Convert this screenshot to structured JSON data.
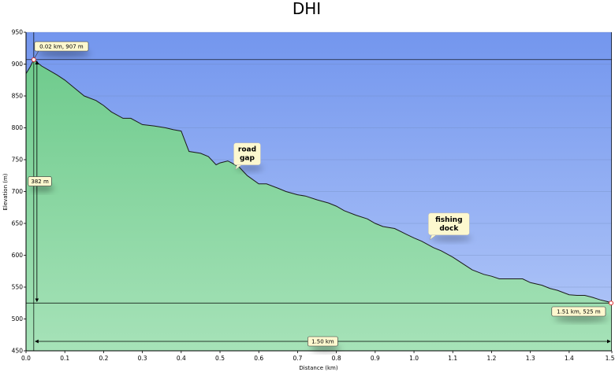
{
  "chart_data": {
    "type": "area",
    "title": "DHI",
    "xlabel": "Distance  (km)",
    "ylabel": "Elevation (m)",
    "xlim": [
      0,
      1.51
    ],
    "ylim": [
      450,
      950
    ],
    "xticks": [
      0.0,
      0.1,
      0.2,
      0.3,
      0.4,
      0.5,
      0.6,
      0.7,
      0.8,
      0.9,
      1.0,
      1.1,
      1.2,
      1.3,
      1.4,
      1.51
    ],
    "xtick_labels": [
      "0.0",
      "0.1",
      "0.2",
      "0.3",
      "0.4",
      "0.5",
      "0.6",
      "0.7",
      "0.8",
      "0.9",
      "1.0",
      "1.1",
      "1.2",
      "1.3",
      "1.4",
      "1.51"
    ],
    "yticks": [
      450,
      500,
      550,
      600,
      650,
      700,
      750,
      800,
      850,
      900,
      950
    ],
    "ytick_labels": [
      "450",
      "500",
      "550",
      "600",
      "650",
      "700",
      "750",
      "800",
      "850",
      "900",
      "950"
    ],
    "grid": true,
    "series": [
      {
        "x": [
          0.0,
          0.01,
          0.02,
          0.04,
          0.06,
          0.08,
          0.1,
          0.12,
          0.15,
          0.18,
          0.2,
          0.22,
          0.25,
          0.27,
          0.3,
          0.33,
          0.36,
          0.38,
          0.4,
          0.42,
          0.45,
          0.47,
          0.49,
          0.5,
          0.52,
          0.53,
          0.55,
          0.57,
          0.6,
          0.62,
          0.65,
          0.67,
          0.7,
          0.72,
          0.75,
          0.78,
          0.8,
          0.82,
          0.85,
          0.88,
          0.9,
          0.92,
          0.95,
          0.98,
          1.0,
          1.02,
          1.05,
          1.07,
          1.1,
          1.13,
          1.15,
          1.18,
          1.2,
          1.22,
          1.25,
          1.28,
          1.3,
          1.33,
          1.35,
          1.37,
          1.4,
          1.42,
          1.44,
          1.46,
          1.48,
          1.5,
          1.51
        ],
        "y": [
          885,
          895,
          907,
          897,
          890,
          883,
          875,
          865,
          850,
          843,
          835,
          825,
          815,
          815,
          805,
          803,
          800,
          797,
          795,
          763,
          760,
          755,
          742,
          745,
          748,
          745,
          738,
          725,
          712,
          712,
          705,
          700,
          695,
          693,
          687,
          682,
          677,
          670,
          663,
          657,
          650,
          645,
          642,
          633,
          627,
          622,
          612,
          607,
          597,
          585,
          577,
          570,
          567,
          563,
          563,
          563,
          557,
          553,
          548,
          545,
          538,
          537,
          537,
          534,
          530,
          527,
          525
        ]
      }
    ],
    "callouts": [
      {
        "text": [
          "road",
          "gap"
        ],
        "x": 0.57,
        "y": 759
      },
      {
        "text": [
          "fishing",
          "dock"
        ],
        "x": 1.09,
        "y": 649
      }
    ],
    "markers": {
      "start": {
        "label": "0.02 km, 907 m",
        "x": 0.02,
        "y": 907
      },
      "end": {
        "label": "1.51 km, 525 m",
        "x": 1.51,
        "y": 525
      },
      "elevation_diff": {
        "label": "382 m"
      },
      "distance_diff": {
        "label": "1.50 km"
      }
    },
    "colors": {
      "sky_top": "#7396ee",
      "sky_bottom": "#b4c9f8",
      "area_top": "#6fcb8d",
      "area_bottom": "#a6e2b8",
      "line": "#1a1a1a",
      "grid": "#6b85b8",
      "box_fill": "#fdf8cf"
    }
  }
}
